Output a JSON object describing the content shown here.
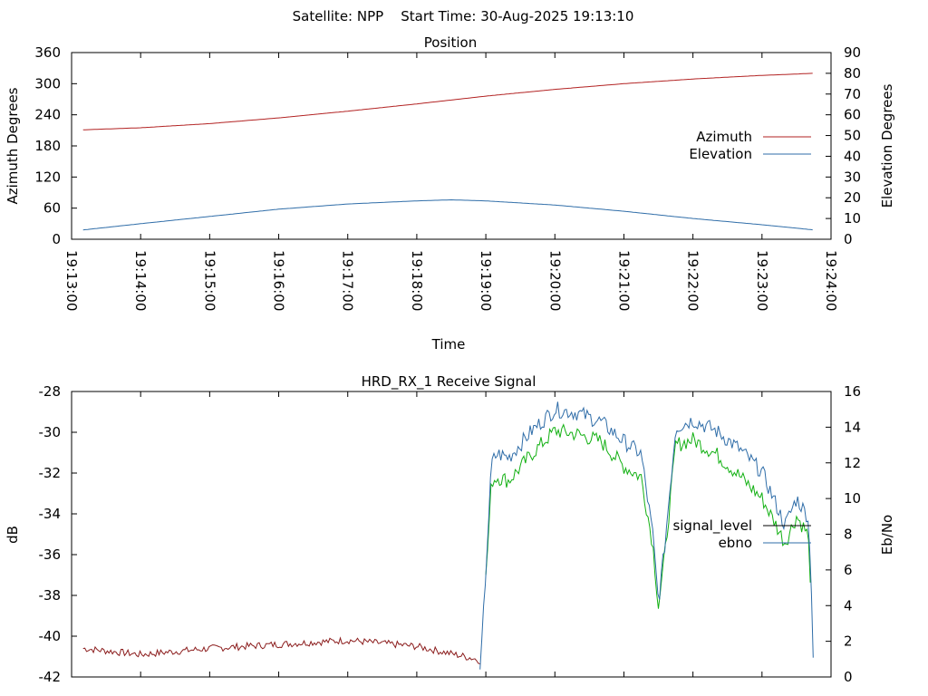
{
  "header": {
    "text": "Satellite: NPP    Start Time: 30-Aug-2025 19:13:10"
  },
  "colors": {
    "azimuth": "#b22222",
    "elevation": "#2f6da8",
    "signal_level": "#8b1c1c",
    "ebno_blue": "#2f6da8",
    "ebno_green": "#12b012",
    "legend_signal": "#000000"
  },
  "chart_data": [
    {
      "type": "line",
      "title": "Position",
      "xlabel": "Time",
      "ylabel": "Azimuth Degrees",
      "y2label": "Elevation Degrees",
      "xlim": [
        "19:13:00",
        "19:24:00"
      ],
      "ylim": [
        0,
        360
      ],
      "y2lim": [
        0,
        90
      ],
      "x_ticks": [
        "19:13:00",
        "19:14:00",
        "19:15:00",
        "19:16:00",
        "19:17:00",
        "19:18:00",
        "19:19:00",
        "19:20:00",
        "19:21:00",
        "19:22:00",
        "19:23:00",
        "19:24:00"
      ],
      "y_ticks": [
        "0",
        "60",
        "120",
        "180",
        "240",
        "300",
        "360"
      ],
      "y2_ticks": [
        "0",
        "10",
        "20",
        "30",
        "40",
        "50",
        "60",
        "70",
        "80",
        "90"
      ],
      "legend_position": "right",
      "series": [
        {
          "name": "Azimuth",
          "axis": "y",
          "x": [
            "19:13:10",
            "19:14:00",
            "19:15:00",
            "19:16:00",
            "19:17:00",
            "19:18:00",
            "19:19:00",
            "19:20:00",
            "19:21:00",
            "19:22:00",
            "19:23:00",
            "19:23:45"
          ],
          "values": [
            211,
            215,
            223,
            234,
            247,
            261,
            276,
            289,
            300,
            309,
            316,
            320
          ]
        },
        {
          "name": "Elevation",
          "axis": "y2",
          "x": [
            "19:13:10",
            "19:14:00",
            "19:15:00",
            "19:16:00",
            "19:17:00",
            "19:18:00",
            "19:18:30",
            "19:19:00",
            "19:20:00",
            "19:21:00",
            "19:22:00",
            "19:23:00",
            "19:23:45"
          ],
          "values": [
            4.5,
            7.5,
            11,
            14.5,
            17,
            18.5,
            19,
            18.5,
            16.5,
            13.5,
            10,
            7,
            4.5
          ]
        }
      ]
    },
    {
      "type": "line",
      "title": "HRD_RX_1 Receive Signal",
      "xlabel": "",
      "ylabel": "dB",
      "y2label": "Eb/No",
      "xlim": [
        "19:13:00",
        "19:24:00"
      ],
      "ylim": [
        -42,
        -28
      ],
      "y2lim": [
        0,
        16
      ],
      "y_ticks": [
        "-42",
        "-40",
        "-38",
        "-36",
        "-34",
        "-32",
        "-30",
        "-28"
      ],
      "y2_ticks": [
        "0",
        "2",
        "4",
        "6",
        "8",
        "10",
        "12",
        "14",
        "16"
      ],
      "legend_position": "right",
      "series": [
        {
          "name": "signal_level",
          "axis": "y",
          "x": [
            "19:13:10",
            "19:14:00",
            "19:15:00",
            "19:16:00",
            "19:17:00",
            "19:18:00",
            "19:18:50",
            "19:18:55"
          ],
          "values": [
            -40.6,
            -40.9,
            -40.6,
            -40.4,
            -40.2,
            -40.5,
            -41.1,
            -41.2
          ]
        },
        {
          "name": "ebno",
          "axis": "y2",
          "x": [
            "19:18:55",
            "19:19:00",
            "19:19:05",
            "19:19:10",
            "19:19:20",
            "19:19:40",
            "19:20:00",
            "19:20:20",
            "19:20:40",
            "19:21:00",
            "19:21:15",
            "19:21:25",
            "19:21:30",
            "19:21:35",
            "19:21:45",
            "19:22:00",
            "19:22:20",
            "19:22:40",
            "19:23:00",
            "19:23:10",
            "19:23:20",
            "19:23:30",
            "19:23:40",
            "19:23:43",
            "19:23:45"
          ],
          "values": [
            0,
            6,
            12,
            12.5,
            12.3,
            13.8,
            15,
            14.8,
            14.3,
            13.2,
            12.5,
            8,
            4.2,
            7,
            14,
            14.4,
            13.8,
            12.8,
            11.5,
            10,
            8.5,
            10,
            9,
            5,
            0
          ]
        },
        {
          "name": "",
          "axis": "y2",
          "x": [
            "19:19:00",
            "19:19:05",
            "19:19:10",
            "19:19:20",
            "19:19:40",
            "19:20:00",
            "19:20:20",
            "19:20:40",
            "19:21:00",
            "19:21:15",
            "19:21:25",
            "19:21:30",
            "19:21:35",
            "19:21:45",
            "19:22:00",
            "19:22:20",
            "19:22:40",
            "19:23:00",
            "19:23:10",
            "19:23:20",
            "19:23:30",
            "19:23:40",
            "19:23:43"
          ],
          "values": [
            5.5,
            11,
            11.2,
            11,
            12.5,
            13.8,
            13.6,
            13.2,
            11.8,
            11.2,
            7.5,
            4,
            6.5,
            13,
            13.3,
            12.5,
            11.3,
            10,
            8.8,
            7.5,
            9,
            8,
            4.5
          ]
        }
      ]
    }
  ]
}
